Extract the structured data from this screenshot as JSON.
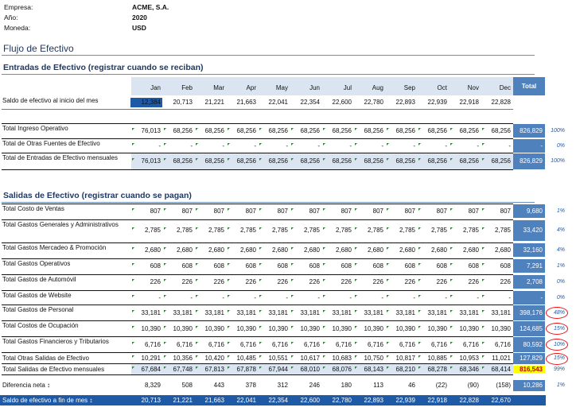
{
  "header": {
    "empresa_label": "Empresa:",
    "empresa": "ACME, S.A.",
    "anio_label": "Año:",
    "anio": "2020",
    "moneda_label": "Moneda:",
    "moneda": "USD"
  },
  "title": "Flujo de Efectivo",
  "entradas_title": "Entradas de Efectivo (registrar cuando se reciban)",
  "salidas_title": "Salidas de Efectivo (registrar cuando se pagan)",
  "months": [
    "Jan",
    "Feb",
    "Mar",
    "Apr",
    "May",
    "Jun",
    "Jul",
    "Aug",
    "Sep",
    "Oct",
    "Nov",
    "Dec"
  ],
  "total_label": "Total",
  "saldo_inicio": {
    "label": "Saldo de efectivo al inicio del mes",
    "values": [
      "12,384",
      "20,713",
      "21,221",
      "21,663",
      "22,041",
      "22,354",
      "22,600",
      "22,780",
      "22,893",
      "22,939",
      "22,918",
      "22,828"
    ]
  },
  "entradas": [
    {
      "label": "Total Ingreso Operativo",
      "values": [
        "76,013",
        "68,256",
        "68,256",
        "68,256",
        "68,256",
        "68,256",
        "68,256",
        "68,256",
        "68,256",
        "68,256",
        "68,256",
        "68,256"
      ],
      "total": "826,829",
      "pct": "100%"
    },
    {
      "label": "Total de Otras Fuentes de Efectivo",
      "values": [
        "-",
        "-",
        "-",
        "-",
        "-",
        "-",
        "-",
        "-",
        "-",
        "-",
        "-",
        "-"
      ],
      "total": "-",
      "pct": "0%"
    },
    {
      "label": "Total de Entradas de Efectivo mensuales",
      "values": [
        "76,013",
        "68,256",
        "68,256",
        "68,256",
        "68,256",
        "68,256",
        "68,256",
        "68,256",
        "68,256",
        "68,256",
        "68,256",
        "68,256"
      ],
      "total": "826,829",
      "pct": "100%"
    }
  ],
  "salidas": [
    {
      "label": "Total Costo de Ventas",
      "values": [
        "807",
        "807",
        "807",
        "807",
        "807",
        "807",
        "807",
        "807",
        "807",
        "807",
        "807",
        "807"
      ],
      "total": "9,680",
      "pct": "1%"
    },
    {
      "label": "Total Gastos Generales y Administrativos",
      "values": [
        "2,785",
        "2,785",
        "2,785",
        "2,785",
        "2,785",
        "2,785",
        "2,785",
        "2,785",
        "2,785",
        "2,785",
        "2,785",
        "2,785"
      ],
      "total": "33,420",
      "pct": "4%"
    },
    {
      "label": "Total Gastos Mercadeo & Promoción",
      "values": [
        "2,680",
        "2,680",
        "2,680",
        "2,680",
        "2,680",
        "2,680",
        "2,680",
        "2,680",
        "2,680",
        "2,680",
        "2,680",
        "2,680"
      ],
      "total": "32,160",
      "pct": "4%"
    },
    {
      "label": "Total Gastos Operativos",
      "values": [
        "608",
        "608",
        "608",
        "608",
        "608",
        "608",
        "608",
        "608",
        "608",
        "608",
        "608",
        "608"
      ],
      "total": "7,291",
      "pct": "1%"
    },
    {
      "label": "Total Gastos de Automóvil",
      "values": [
        "226",
        "226",
        "226",
        "226",
        "226",
        "226",
        "226",
        "226",
        "226",
        "226",
        "226",
        "226"
      ],
      "total": "2,708",
      "pct": "0%"
    },
    {
      "label": "Total Gastos de Website",
      "values": [
        "-",
        "-",
        "-",
        "-",
        "-",
        "-",
        "-",
        "-",
        "-",
        "-",
        "-",
        "-"
      ],
      "total": "-",
      "pct": "0%"
    },
    {
      "label": "Total Gastos de Personal",
      "values": [
        "33,181",
        "33,181",
        "33,181",
        "33,181",
        "33,181",
        "33,181",
        "33,181",
        "33,181",
        "33,181",
        "33,181",
        "33,181",
        "33,181"
      ],
      "total": "398,176",
      "pct": "48%"
    },
    {
      "label": "Total Costos de Ocupación",
      "values": [
        "10,390",
        "10,390",
        "10,390",
        "10,390",
        "10,390",
        "10,390",
        "10,390",
        "10,390",
        "10,390",
        "10,390",
        "10,390",
        "10,390"
      ],
      "total": "124,685",
      "pct": "15%"
    },
    {
      "label": "Total Gastos Financieros y Tributarios",
      "values": [
        "6,716",
        "6,716",
        "6,716",
        "6,716",
        "6,716",
        "6,716",
        "6,716",
        "6,716",
        "6,716",
        "6,716",
        "6,716",
        "6,716"
      ],
      "total": "80,592",
      "pct": "10%"
    },
    {
      "label": "Total Otras Salidas de Efectivo",
      "values": [
        "10,291",
        "10,356",
        "10,420",
        "10,485",
        "10,551",
        "10,617",
        "10,683",
        "10,750",
        "10,817",
        "10,885",
        "10,953",
        "11,021"
      ],
      "total": "127,829",
      "pct": "15%"
    },
    {
      "label": "Total Salidas de Efectivo mensuales",
      "values": [
        "67,684",
        "67,748",
        "67,813",
        "67,878",
        "67,944",
        "68,010",
        "68,076",
        "68,143",
        "68,210",
        "68,278",
        "68,346",
        "68,414"
      ],
      "total": "816,543",
      "pct": "99%"
    }
  ],
  "diferencia": {
    "label": "Diferencia neta ↕",
    "values": [
      "8,329",
      "508",
      "443",
      "378",
      "312",
      "246",
      "180",
      "113",
      "46",
      "(22)",
      "(90)",
      "(158)"
    ],
    "total": "10,286",
    "pct": "1%"
  },
  "saldo_fin": {
    "label": "Saldo de efectivo a fin de mes ↕",
    "values": [
      "20,713",
      "21,221",
      "21,663",
      "22,041",
      "22,354",
      "22,600",
      "22,780",
      "22,893",
      "22,939",
      "22,918",
      "22,828",
      "22,670"
    ]
  }
}
